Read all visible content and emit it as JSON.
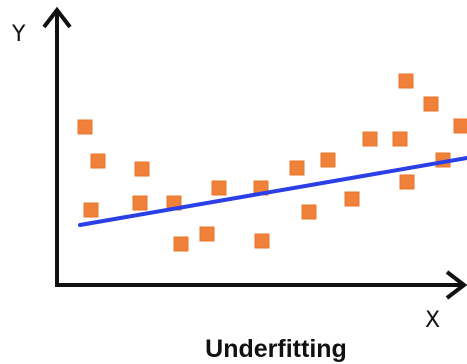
{
  "figure": {
    "y_axis_label": "Y",
    "x_axis_label": "X",
    "caption": "Underfitting"
  },
  "chart_data": {
    "type": "scatter",
    "series": [
      {
        "role": "observations",
        "marker": "square",
        "color": "#f0813a",
        "points": [
          [
            85,
            127
          ],
          [
            98,
            161
          ],
          [
            91,
            210
          ],
          [
            142,
            169
          ],
          [
            140,
            203
          ],
          [
            174,
            203
          ],
          [
            181,
            244
          ],
          [
            207,
            234
          ],
          [
            219,
            188
          ],
          [
            262,
            241
          ],
          [
            261,
            188
          ],
          [
            297,
            168
          ],
          [
            309,
            212
          ],
          [
            328,
            160
          ],
          [
            352,
            199
          ],
          [
            370,
            139
          ],
          [
            400,
            139
          ],
          [
            406,
            81
          ],
          [
            431,
            104
          ],
          [
            407,
            182
          ],
          [
            443,
            160
          ],
          [
            461,
            126
          ]
        ]
      },
      {
        "role": "fitted-line",
        "color": "#2a3fe6",
        "from": [
          80,
          225
        ],
        "to": [
          467,
          158
        ]
      }
    ],
    "grid": false,
    "legend": "none"
  },
  "colors": {
    "axis": "#111111",
    "point": "#f0813a",
    "point_edge": "#e87428",
    "fit_line": "#2a3fe6"
  }
}
